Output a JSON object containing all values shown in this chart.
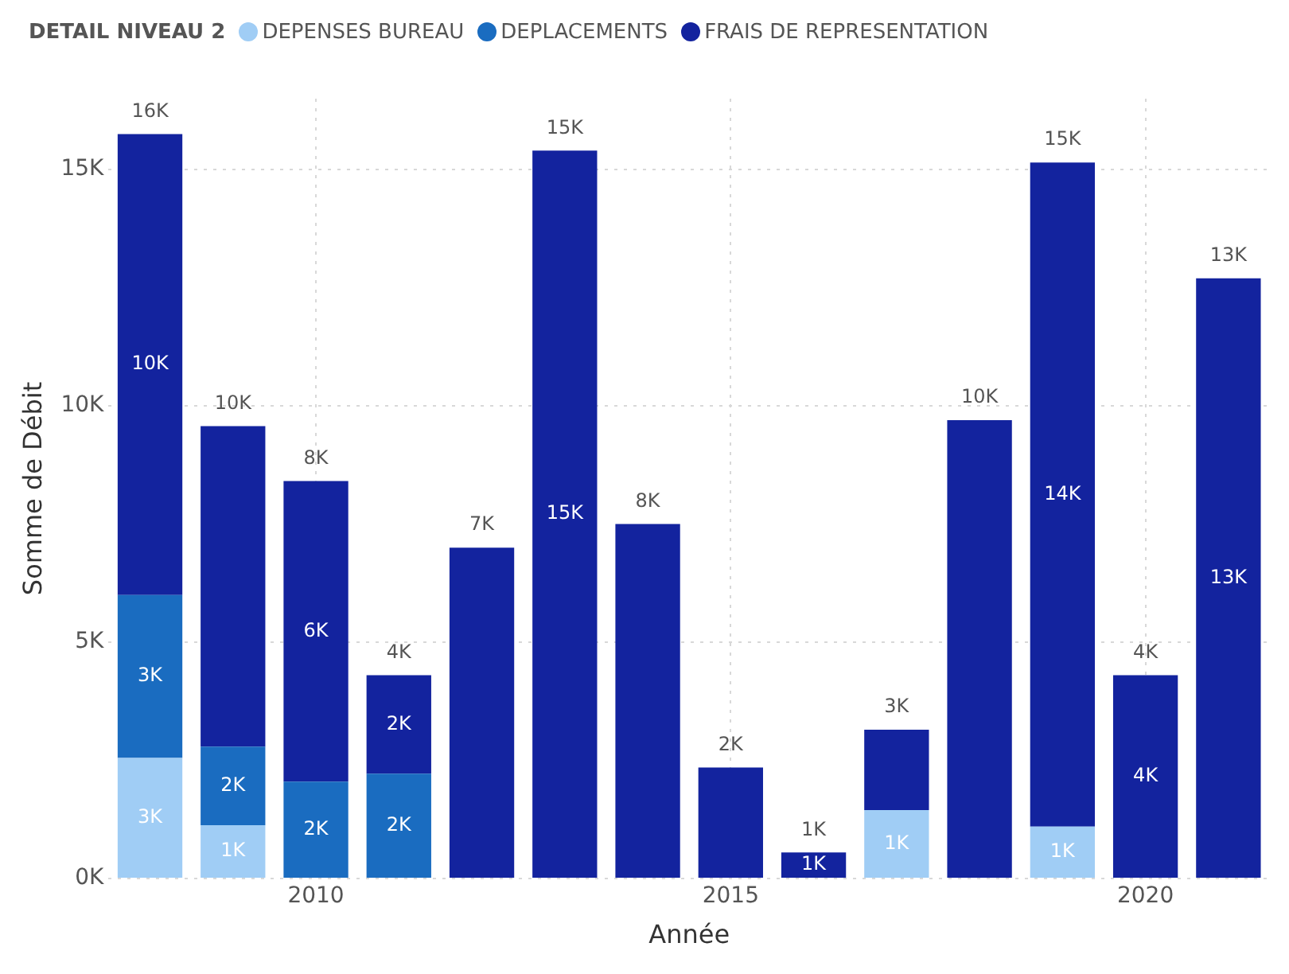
{
  "chart_data": {
    "type": "bar",
    "stacked": true,
    "xlabel": "Année",
    "ylabel": "Somme de Débit",
    "legend_title": "DETAIL NIVEAU 2",
    "legend": "top left",
    "grid": true,
    "x": [
      2008,
      2009,
      2010,
      2011,
      2012,
      2013,
      2014,
      2015,
      2016,
      2017,
      2018,
      2019,
      2020,
      2021
    ],
    "xlim": [
      2007.5,
      2021.5
    ],
    "xticks": [
      2010,
      2015,
      2020
    ],
    "ylim": [
      0,
      16.5
    ],
    "yticks": [
      {
        "value": 0,
        "label": "0K"
      },
      {
        "value": 5,
        "label": "5K"
      },
      {
        "value": 10,
        "label": "10K"
      },
      {
        "value": 15,
        "label": "15K"
      }
    ],
    "series": [
      {
        "name": "DEPENSES BUREAU",
        "color": "#a0cdf5",
        "values": [
          2.55,
          1.13,
          null,
          null,
          null,
          null,
          null,
          null,
          null,
          1.45,
          null,
          1.1,
          null,
          null
        ],
        "value_labels": [
          "3K",
          "1K",
          null,
          null,
          null,
          null,
          null,
          null,
          null,
          "1K",
          null,
          "1K",
          null,
          null
        ]
      },
      {
        "name": "DEPLACEMENTS",
        "color": "#1a6cc0",
        "values": [
          3.45,
          1.66,
          2.05,
          2.22,
          null,
          null,
          null,
          null,
          null,
          null,
          null,
          null,
          null,
          null
        ],
        "value_labels": [
          "3K",
          "2K",
          "2K",
          "2K",
          null,
          null,
          null,
          null,
          null,
          null,
          null,
          null,
          null,
          null
        ]
      },
      {
        "name": "FRAIS DE REPRESENTATION",
        "color": "#13239e",
        "values": [
          9.75,
          6.78,
          6.36,
          2.08,
          7.0,
          15.4,
          7.5,
          2.35,
          0.55,
          1.7,
          9.7,
          14.05,
          4.3,
          12.7
        ],
        "value_labels": [
          "10K",
          null,
          "6K",
          "2K",
          null,
          "15K",
          null,
          null,
          "1K",
          null,
          null,
          "14K",
          "4K",
          "13K"
        ]
      }
    ],
    "totals": [
      "16K",
      "10K",
      "8K",
      "4K",
      "7K",
      "15K",
      "8K",
      "2K",
      "1K",
      "3K",
      "10K",
      "15K",
      "4K",
      "13K"
    ]
  }
}
